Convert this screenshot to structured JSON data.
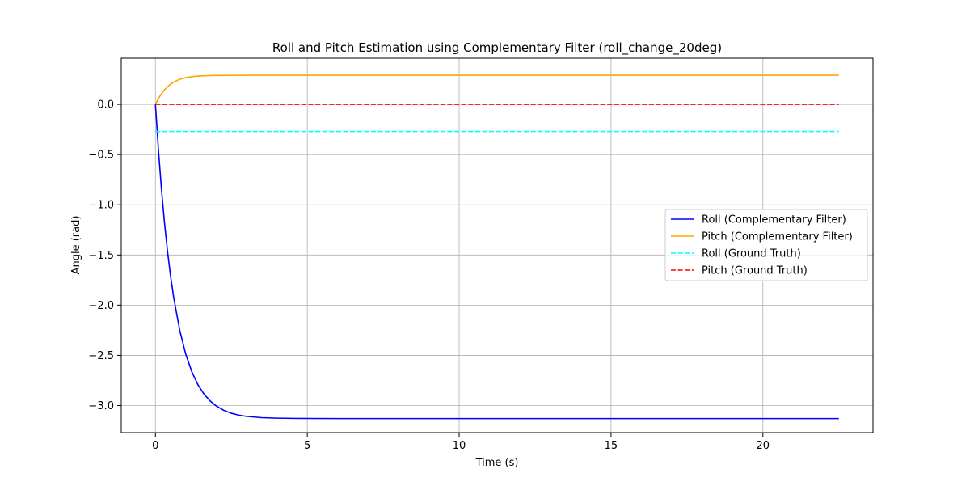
{
  "chart_data": {
    "type": "line",
    "title": "Roll and Pitch Estimation using Complementary Filter (roll_change_20deg)",
    "xlabel": "Time (s)",
    "ylabel": "Angle (rad)",
    "xlim": [
      -1.125,
      23.625
    ],
    "ylim": [
      -3.27,
      0.46
    ],
    "x_ticks": [
      0,
      5,
      10,
      15,
      20
    ],
    "x_tick_labels": [
      "0",
      "5",
      "10",
      "15",
      "20"
    ],
    "y_ticks": [
      0.0,
      -0.5,
      -1.0,
      -1.5,
      -2.0,
      -2.5,
      -3.0
    ],
    "y_tick_labels": [
      "0.0",
      "−0.5",
      "−1.0",
      "−1.5",
      "−2.0",
      "−2.5",
      "−3.0"
    ],
    "grid": true,
    "legend_position": "center-right",
    "series": [
      {
        "name": "Roll (Complementary Filter)",
        "color": "#0000ff",
        "style": "solid",
        "x": [
          0,
          0.1,
          0.2,
          0.3,
          0.4,
          0.5,
          0.6,
          0.8,
          1.0,
          1.2,
          1.4,
          1.6,
          1.8,
          2.0,
          2.25,
          2.5,
          2.75,
          3.0,
          3.5,
          4.0,
          4.5,
          5.0,
          6.0,
          8.0,
          10.0,
          12.5,
          15.0,
          17.5,
          20.0,
          22.5
        ],
        "y": [
          0.0,
          -0.458,
          -0.849,
          -1.183,
          -1.469,
          -1.713,
          -1.921,
          -2.25,
          -2.49,
          -2.665,
          -2.793,
          -2.886,
          -2.954,
          -3.004,
          -3.048,
          -3.077,
          -3.096,
          -3.108,
          -3.121,
          -3.126,
          -3.128,
          -3.129,
          -3.13,
          -3.13,
          -3.13,
          -3.13,
          -3.13,
          -3.13,
          -3.13,
          -3.13
        ]
      },
      {
        "name": "Pitch (Complementary Filter)",
        "color": "#ffa500",
        "style": "solid",
        "x": [
          0,
          0.1,
          0.2,
          0.3,
          0.4,
          0.5,
          0.6,
          0.8,
          1.0,
          1.2,
          1.4,
          1.6,
          1.8,
          2.0,
          2.5,
          3.0,
          4.0,
          5.0,
          10.0,
          15.0,
          20.0,
          22.5
        ],
        "y": [
          0.0,
          0.059,
          0.107,
          0.146,
          0.177,
          0.202,
          0.222,
          0.25,
          0.266,
          0.276,
          0.282,
          0.285,
          0.287,
          0.288,
          0.289,
          0.29,
          0.29,
          0.29,
          0.29,
          0.29,
          0.29,
          0.29
        ]
      },
      {
        "name": "Roll (Ground Truth)",
        "color": "#00ffff",
        "style": "dashed",
        "x": [
          0,
          22.5
        ],
        "y": [
          -0.27,
          -0.27
        ]
      },
      {
        "name": "Pitch (Ground Truth)",
        "color": "#ff0000",
        "style": "dashed",
        "x": [
          0,
          22.5
        ],
        "y": [
          0.0,
          0.0
        ]
      }
    ]
  }
}
